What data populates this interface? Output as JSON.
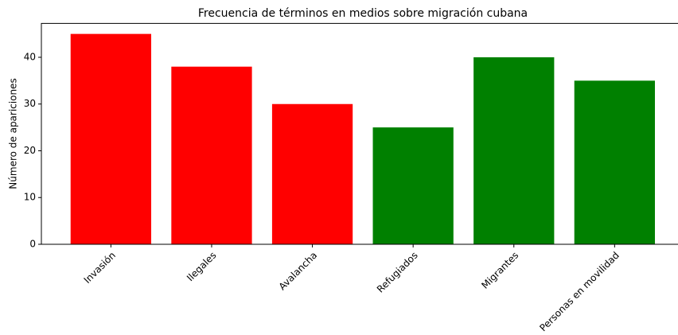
{
  "chart_data": {
    "type": "bar",
    "title": "Frecuencia de términos en medios sobre migración cubana",
    "ylabel": "Número de apariciones",
    "categories": [
      "Invasión",
      "Ilegales",
      "Avalancha",
      "Refugiados",
      "Migrantes",
      "Personas en movilidad"
    ],
    "values": [
      45,
      38,
      30,
      25,
      40,
      35
    ],
    "colors": [
      "#ff0000",
      "#ff0000",
      "#ff0000",
      "#008000",
      "#008000",
      "#008000"
    ],
    "ylim": [
      0,
      47.25
    ],
    "yticks": [
      0,
      10,
      20,
      30,
      40
    ],
    "grid": false
  }
}
